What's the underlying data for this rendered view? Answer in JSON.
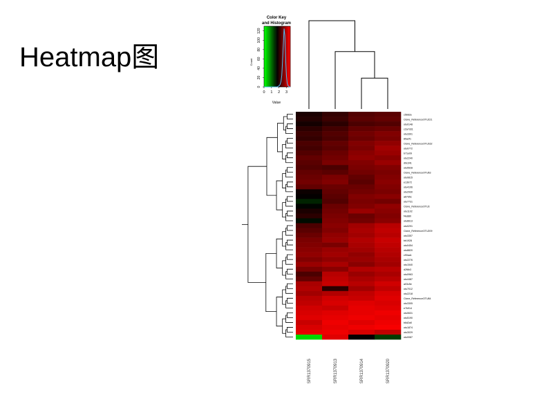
{
  "slide": {
    "title": "Heatmap图"
  },
  "chart_data": {
    "type": "heatmap",
    "title": "",
    "color_key": {
      "title_line1": "Color Key",
      "title_line2": "and Histogram",
      "ylabel": "Count",
      "xlabel": "Value",
      "x_ticks": [
        "0",
        "1",
        "2",
        "3"
      ],
      "y_ticks": [
        "0",
        "20",
        "40",
        "60",
        "80",
        "100",
        "120"
      ],
      "value_range": [
        0,
        3.5
      ],
      "count_range": [
        0,
        130
      ],
      "histogram": [
        0,
        0,
        0,
        0,
        0,
        0,
        0,
        0,
        0,
        0,
        0,
        0,
        0,
        0,
        0,
        0,
        0,
        0,
        1,
        2,
        3,
        6,
        12,
        25,
        55,
        90,
        125,
        110,
        60,
        25,
        8,
        3,
        1,
        0,
        0
      ],
      "colors": {
        "low": "#00ff00",
        "mid": "#000000",
        "high": "#ff0000"
      }
    },
    "columns": [
      "SRR1370915",
      "SRR1370913",
      "SRR1370914",
      "SRR1370920"
    ],
    "row_labels": [
      "c5b62e",
      "Clone_ReferenceOTU221",
      "otu0148",
      "c2a7d31",
      "otu3391",
      "85a2f1",
      "Clone_ReferenceOTU162",
      "otu0772",
      "b71e09",
      "otu2240",
      "d9c341",
      "otu5528",
      "Clone_ReferenceOTU63",
      "otu0815",
      "e13b72",
      "otu4106",
      "otu2930",
      "a67d5c",
      "otu7731",
      "Clone_ReferenceOTU3",
      "otu1102",
      "f4e880",
      "otu6613",
      "otu0291",
      "Clone_ReferenceOTU209",
      "otu3357",
      "bb1928",
      "otu0454",
      "otu8820",
      "c90aa1",
      "otu2276",
      "otu1540",
      "d2f6b3",
      "otu0963",
      "otu4487",
      "a03c5e",
      "otu7012",
      "otu2218",
      "Clone_ReferenceOTU84",
      "otu3305",
      "e7b914",
      "otu0631",
      "otu5190",
      "b6d2a0",
      "otu1874",
      "otu3029",
      "otu0087"
    ],
    "values": [
      [
        0.6,
        0.9,
        1.3,
        1.4
      ],
      [
        0.7,
        1.0,
        1.4,
        1.5
      ],
      [
        0.5,
        0.8,
        1.2,
        1.3
      ],
      [
        0.8,
        1.1,
        1.5,
        1.6
      ],
      [
        1.0,
        1.3,
        1.7,
        1.9
      ],
      [
        0.9,
        1.2,
        1.6,
        1.8
      ],
      [
        1.2,
        1.5,
        1.9,
        2.1
      ],
      [
        1.1,
        1.4,
        1.8,
        2.3
      ],
      [
        1.3,
        1.6,
        2.0,
        2.2
      ],
      [
        1.5,
        1.7,
        2.1,
        2.0
      ],
      [
        1.4,
        1.8,
        1.9,
        2.2
      ],
      [
        1.3,
        1.2,
        1.8,
        1.9
      ],
      [
        1.5,
        1.4,
        1.7,
        1.8
      ],
      [
        1.6,
        1.8,
        1.5,
        1.9
      ],
      [
        1.7,
        1.9,
        1.4,
        2.0
      ],
      [
        1.5,
        1.6,
        1.6,
        1.9
      ],
      [
        0.4,
        1.5,
        1.7,
        1.8
      ],
      [
        0.3,
        1.4,
        1.9,
        2.0
      ],
      [
        -0.2,
        1.3,
        1.8,
        1.7
      ],
      [
        0.2,
        1.6,
        1.9,
        2.1
      ],
      [
        0.6,
        1.7,
        2.2,
        2.0
      ],
      [
        0.8,
        1.8,
        1.6,
        1.9
      ],
      [
        0.1,
        1.9,
        1.7,
        2.0
      ],
      [
        1.2,
        2.0,
        2.3,
        2.6
      ],
      [
        1.4,
        1.9,
        2.4,
        2.7
      ],
      [
        1.6,
        2.1,
        2.3,
        2.6
      ],
      [
        1.8,
        2.2,
        2.5,
        2.8
      ],
      [
        1.9,
        1.8,
        2.4,
        2.7
      ],
      [
        2.0,
        2.2,
        2.3,
        2.6
      ],
      [
        2.1,
        2.3,
        2.1,
        2.5
      ],
      [
        1.9,
        2.1,
        2.2,
        2.4
      ],
      [
        2.2,
        2.4,
        2.0,
        2.3
      ],
      [
        1.8,
        2.0,
        2.5,
        2.6
      ],
      [
        1.2,
        2.6,
        2.2,
        2.4
      ],
      [
        1.5,
        2.7,
        2.4,
        2.6
      ],
      [
        2.4,
        2.8,
        2.6,
        2.9
      ],
      [
        2.5,
        0.8,
        2.3,
        2.7
      ],
      [
        2.3,
        2.5,
        2.7,
        3.0
      ],
      [
        2.6,
        2.9,
        2.8,
        3.1
      ],
      [
        2.7,
        3.0,
        3.1,
        3.0
      ],
      [
        2.9,
        2.8,
        3.2,
        3.1
      ],
      [
        3.0,
        3.1,
        3.2,
        3.3
      ],
      [
        3.1,
        3.2,
        3.3,
        3.2
      ],
      [
        2.8,
        3.3,
        3.1,
        3.3
      ],
      [
        3.0,
        3.2,
        3.3,
        3.4
      ],
      [
        3.2,
        3.3,
        3.0,
        2.7
      ],
      [
        -2.5,
        3.1,
        0.3,
        -0.5
      ]
    ],
    "column_dendrogram": {
      "merges": [
        [
          2,
          3,
          0.35
        ],
        [
          1,
          "23",
          0.65
        ],
        [
          0,
          "123",
          1.0
        ]
      ]
    }
  }
}
